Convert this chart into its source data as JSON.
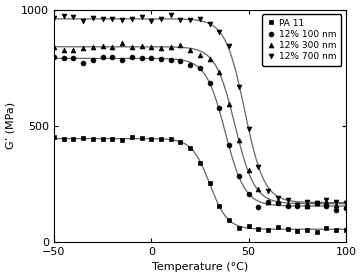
{
  "title": "",
  "xlabel": "Temperature (°C)",
  "ylabel": "G’ (MPa)",
  "xlim": [
    -50,
    100
  ],
  "ylim": [
    0,
    1000
  ],
  "xticks": [
    -50,
    0,
    50,
    100
  ],
  "yticks": [
    0,
    500,
    1000
  ],
  "legend": [
    "PA 11",
    "12% 100 nm",
    "12% 300 nm",
    "12% 700 nm"
  ],
  "markers": [
    "s",
    "o",
    "^",
    "v"
  ],
  "series": [
    {
      "name": "PA 11",
      "y_high": 445,
      "y_low": 55,
      "inflection": 30,
      "steepness": 0.22
    },
    {
      "name": "12% 100 nm",
      "y_high": 790,
      "y_low": 155,
      "inflection": 38,
      "steepness": 0.2
    },
    {
      "name": "12% 300 nm",
      "y_high": 840,
      "y_low": 165,
      "inflection": 43,
      "steepness": 0.2
    },
    {
      "name": "12% 700 nm",
      "y_high": 960,
      "y_low": 170,
      "inflection": 48,
      "steepness": 0.2
    }
  ],
  "marker_x_step": 5,
  "line_color": "#666666",
  "marker_color": "#000000",
  "marker_size": 3.5,
  "linewidth": 0.9,
  "background_color": "#ffffff"
}
